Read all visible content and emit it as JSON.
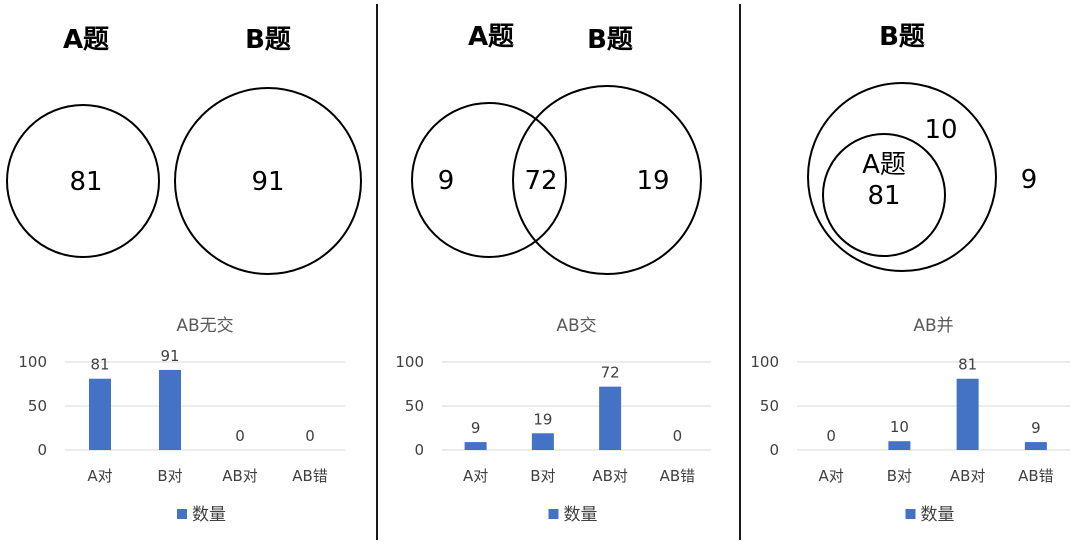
{
  "colors": {
    "bar": "#4472C4",
    "grid": "#d9d9d9",
    "stroke": "#000000"
  },
  "venn": [
    {
      "labels": {
        "a_title": "A题",
        "b_title": "B题",
        "a": "81",
        "b": "91"
      }
    },
    {
      "labels": {
        "a_title": "A题",
        "b_title": "B题",
        "a": "9",
        "ab": "72",
        "b": "19"
      }
    },
    {
      "labels": {
        "b_title": "B题",
        "b": "10",
        "inner_title": "A题",
        "inner": "81",
        "outside": "9"
      }
    }
  ],
  "chart_data": [
    {
      "type": "bar",
      "title": "AB无交",
      "categories": [
        "A对",
        "B对",
        "AB对",
        "AB错"
      ],
      "series": [
        {
          "name": "数量",
          "values": [
            81,
            91,
            0,
            0
          ]
        }
      ],
      "ylim": [
        0,
        100
      ],
      "yticks": [
        0,
        50,
        100
      ],
      "grid": true,
      "legend_position": "bottom"
    },
    {
      "type": "bar",
      "title": "AB交",
      "categories": [
        "A对",
        "B对",
        "AB对",
        "AB错"
      ],
      "series": [
        {
          "name": "数量",
          "values": [
            9,
            19,
            72,
            0
          ]
        }
      ],
      "ylim": [
        0,
        100
      ],
      "yticks": [
        0,
        50,
        100
      ],
      "grid": true,
      "legend_position": "bottom"
    },
    {
      "type": "bar",
      "title": "AB并",
      "categories": [
        "A对",
        "B对",
        "AB对",
        "AB错"
      ],
      "series": [
        {
          "name": "数量",
          "values": [
            0,
            10,
            81,
            9
          ]
        }
      ],
      "ylim": [
        0,
        100
      ],
      "yticks": [
        0,
        50,
        100
      ],
      "grid": true,
      "legend_position": "bottom"
    }
  ]
}
